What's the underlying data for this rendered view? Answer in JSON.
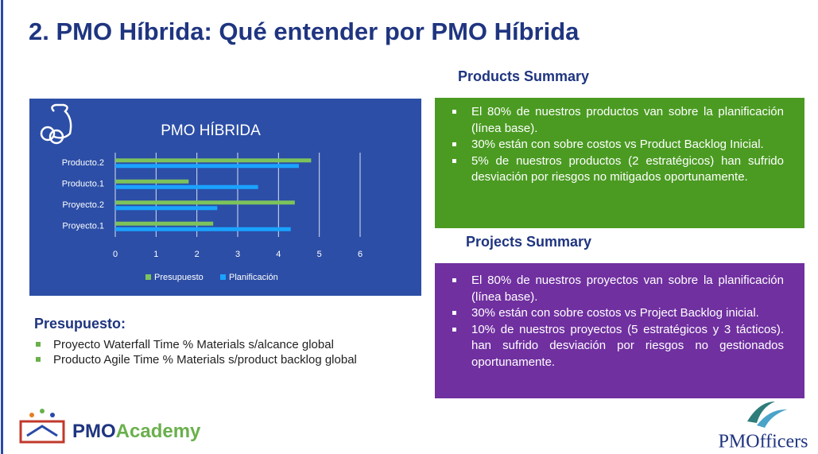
{
  "title": "2. PMO Híbrida: Qué entender por PMO Híbrida",
  "chart_data": {
    "type": "bar",
    "orientation": "horizontal",
    "title": "PMO HÍBRIDA",
    "categories": [
      "Proyecto.1",
      "Proyecto.2",
      "Producto.1",
      "Producto.2"
    ],
    "series": [
      {
        "name": "Presupuesto",
        "color": "#7cc35b",
        "values": [
          2.4,
          4.4,
          1.8,
          4.8
        ]
      },
      {
        "name": "Planificación",
        "color": "#1aa3ff",
        "values": [
          4.3,
          2.5,
          3.5,
          4.5
        ]
      }
    ],
    "xlim": [
      0,
      6
    ],
    "xticks": [
      0,
      1,
      2,
      3,
      4,
      5,
      6
    ],
    "grid": true,
    "legend": "bottom"
  },
  "products_summary": {
    "heading": "Products Summary",
    "items": [
      "El 80% de nuestros productos van sobre la planificación (línea base).",
      "30% están con sobre costos vs Product Backlog Inicial.",
      "5% de nuestros productos (2 estratégicos) han sufrido desviación por riesgos no mitigados oportunamente."
    ]
  },
  "projects_summary": {
    "heading": "Projects Summary",
    "items": [
      "El 80% de nuestros proyectos van sobre la planificación (línea base).",
      "30% están con sobre costos vs Project Backlog inicial.",
      "10% de nuestros proyectos (5 estratégicos y 3 tácticos). han sufrido desviación por riesgos no gestionados oportunamente."
    ]
  },
  "presupuesto": {
    "heading": "Presupuesto:",
    "items": [
      "Proyecto Waterfall Time % Materials s/alcance global",
      "Producto Agile Time % Materials s/product backlog global"
    ]
  },
  "logos": {
    "academy": [
      "PMO",
      "Academy"
    ],
    "officers": "PMOfficers"
  }
}
